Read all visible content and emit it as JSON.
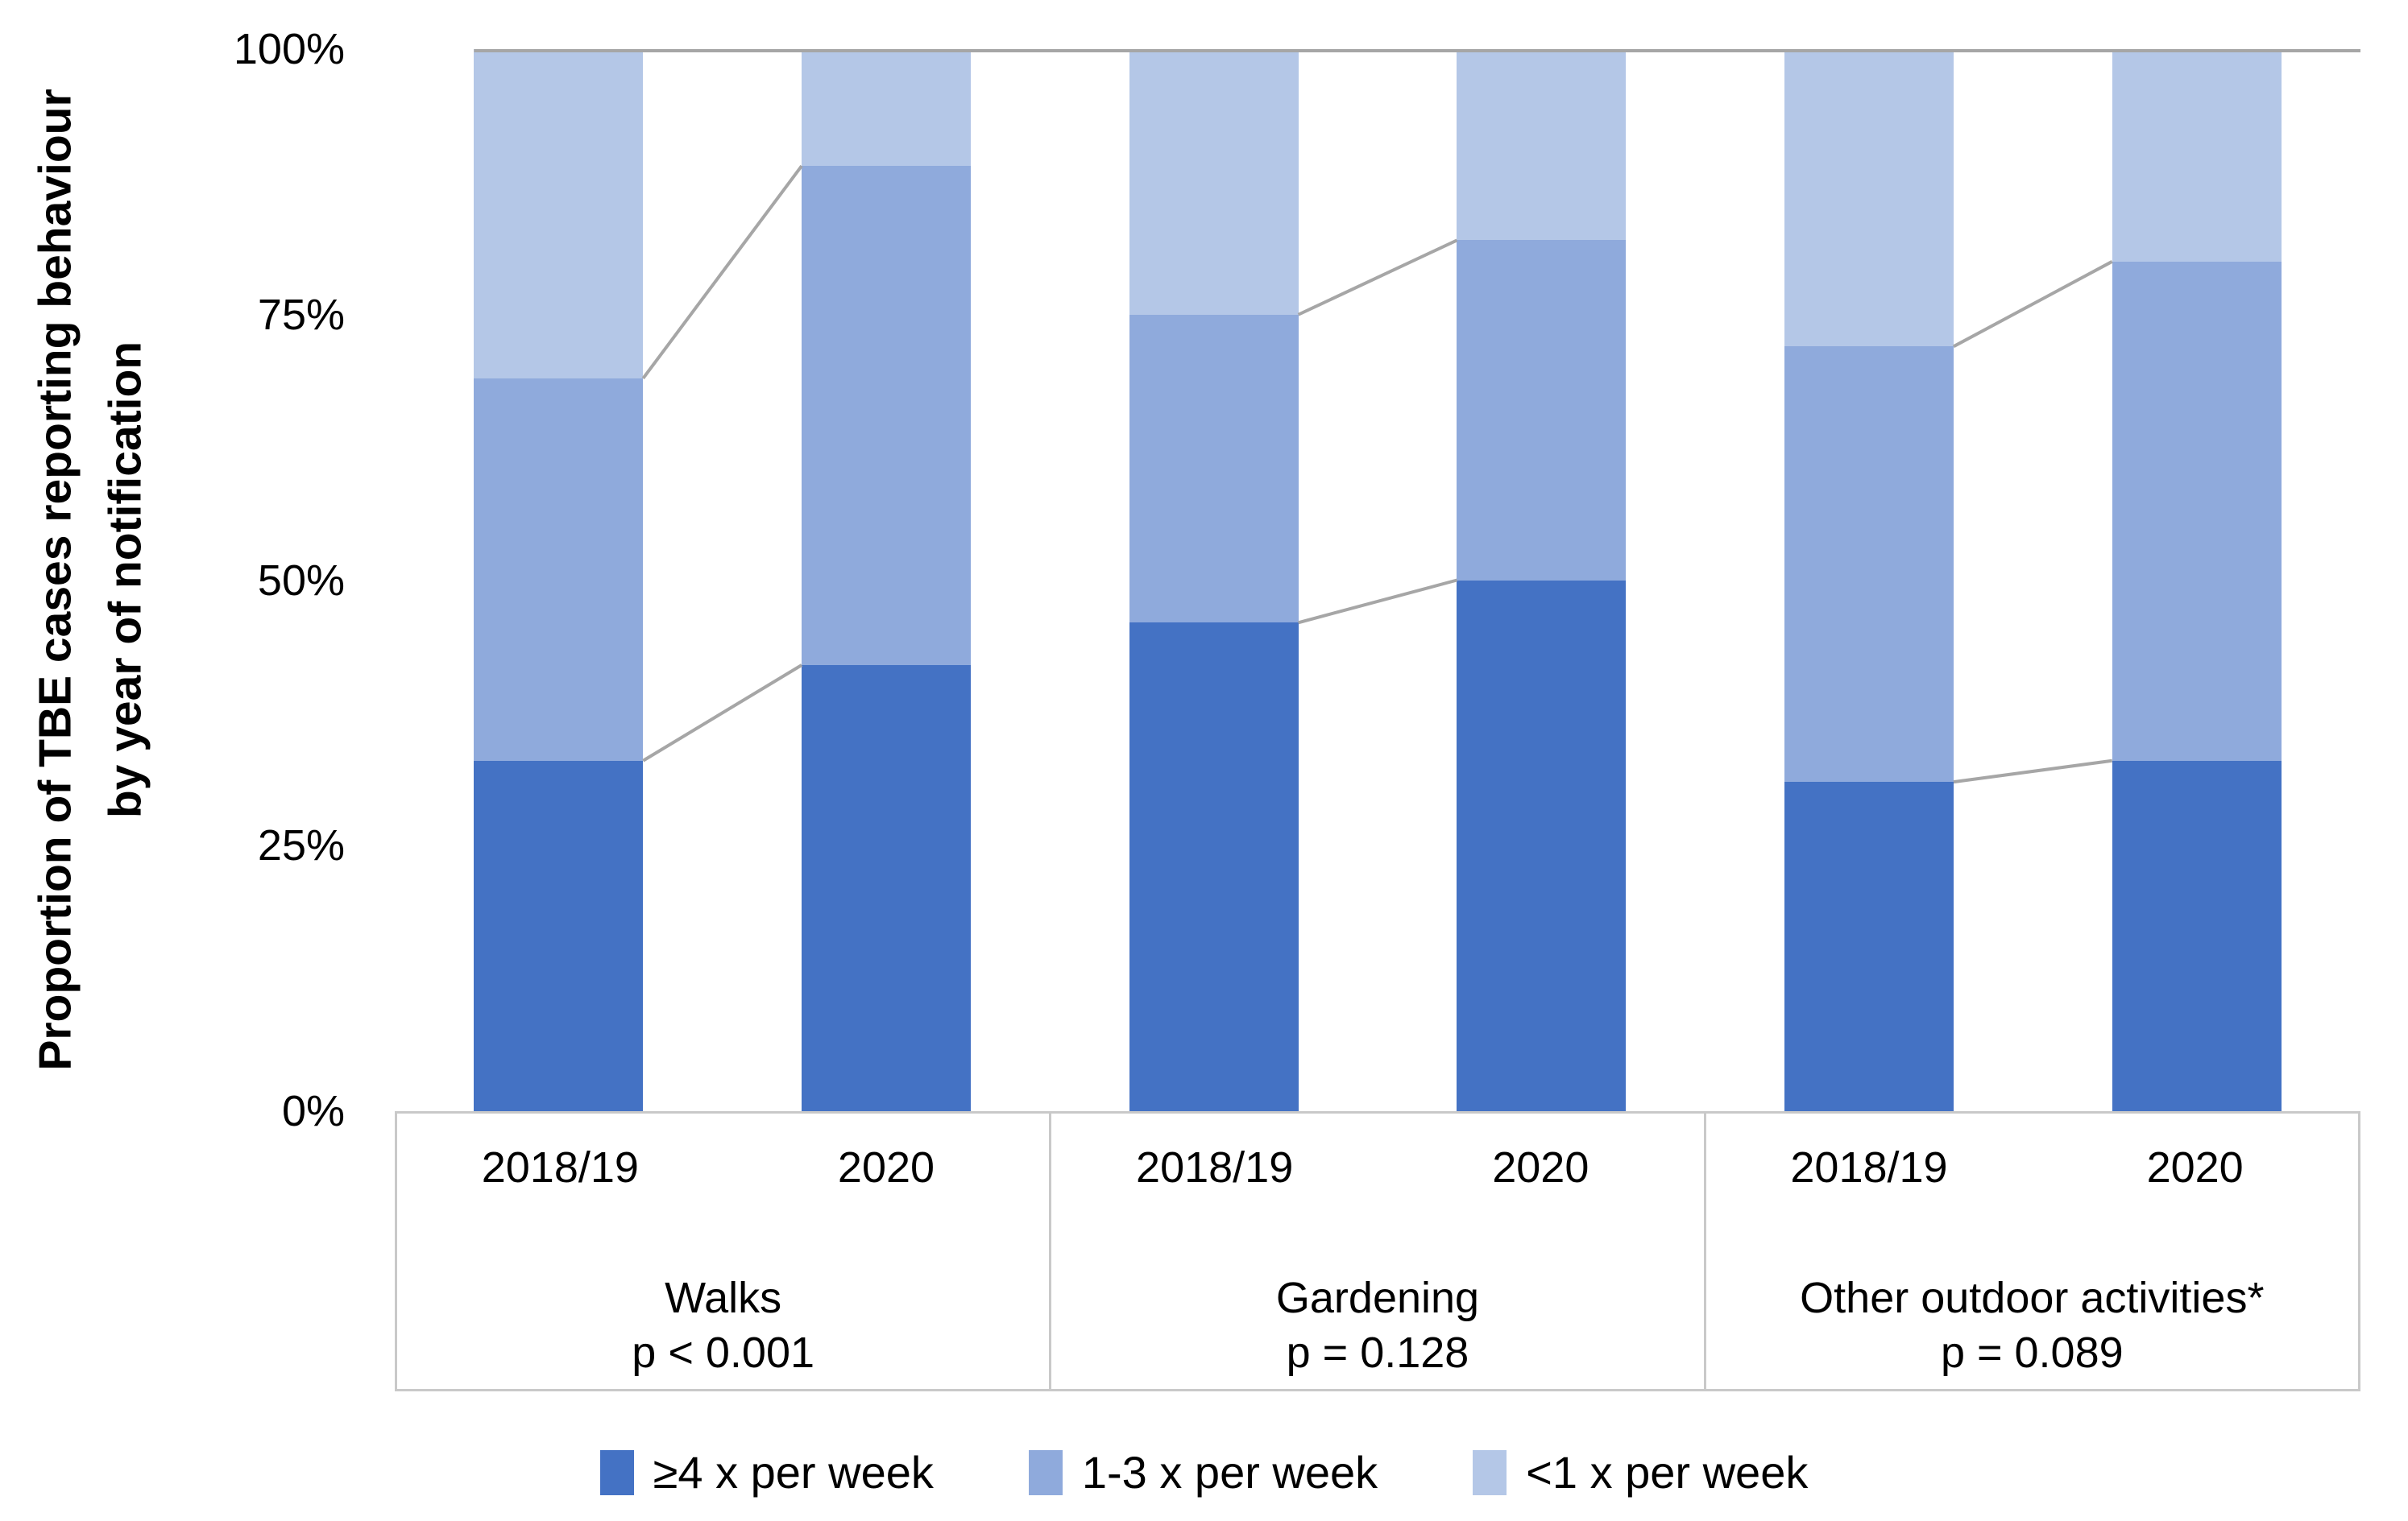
{
  "y_axis": {
    "title_line1": "Proportion of TBE cases reporting behaviour",
    "title_line2": "by year of notification",
    "ticks": [
      "100%",
      "75%",
      "50%",
      "25%",
      "0%"
    ]
  },
  "groups": [
    {
      "name": "Walks",
      "p_label": "p < 0.001",
      "years": [
        "2018/19",
        "2020"
      ]
    },
    {
      "name": "Gardening",
      "p_label": "p = 0.128",
      "years": [
        "2018/19",
        "2020"
      ]
    },
    {
      "name": "Other outdoor activities*",
      "p_label": "p = 0.089",
      "years": [
        "2018/19",
        "2020"
      ]
    }
  ],
  "legend": [
    {
      "label": "≥4 x per week",
      "color": "#4472C4"
    },
    {
      "label": "1-3 x per week",
      "color": "#8FAADC"
    },
    {
      "label": "<1 x per week",
      "color": "#B4C7E7"
    }
  ],
  "colors": {
    "dark_blue": "#4472C4",
    "medium_blue": "#8FAADC",
    "light_blue": "#B4C7E7",
    "connector_gray": "#A6A6A6",
    "axis_gray": "#C9C9C9"
  },
  "chart_data": {
    "type": "bar",
    "stacked": true,
    "unit": "percent",
    "title": "",
    "xlabel": "",
    "ylabel": "Proportion of TBE cases reporting behaviour by year of notification",
    "ylim": [
      0,
      100
    ],
    "y_ticks": [
      0,
      25,
      50,
      75,
      100
    ],
    "grid": false,
    "legend_position": "bottom",
    "group_labels": [
      "Walks p < 0.001",
      "Gardening p = 0.128",
      "Other outdoor activities* p = 0.089"
    ],
    "categories": [
      "Walks 2018/19",
      "Walks 2020",
      "Gardening 2018/19",
      "Gardening 2020",
      "Other outdoor activities 2018/19",
      "Other outdoor activities 2020"
    ],
    "series": [
      {
        "name": "≥4 x per week",
        "color": "#4472C4",
        "values": [
          33,
          42,
          46,
          50,
          31,
          33
        ]
      },
      {
        "name": "1-3 x per week",
        "color": "#8FAADC",
        "values": [
          36,
          47,
          29,
          32,
          41,
          47
        ]
      },
      {
        "name": "<1 x per week",
        "color": "#B4C7E7",
        "values": [
          31,
          11,
          25,
          18,
          28,
          20
        ]
      }
    ],
    "connector_lines": "gray series lines join segment boundaries between the two bars of each group; horizontal gray line along 100% across the plot"
  }
}
